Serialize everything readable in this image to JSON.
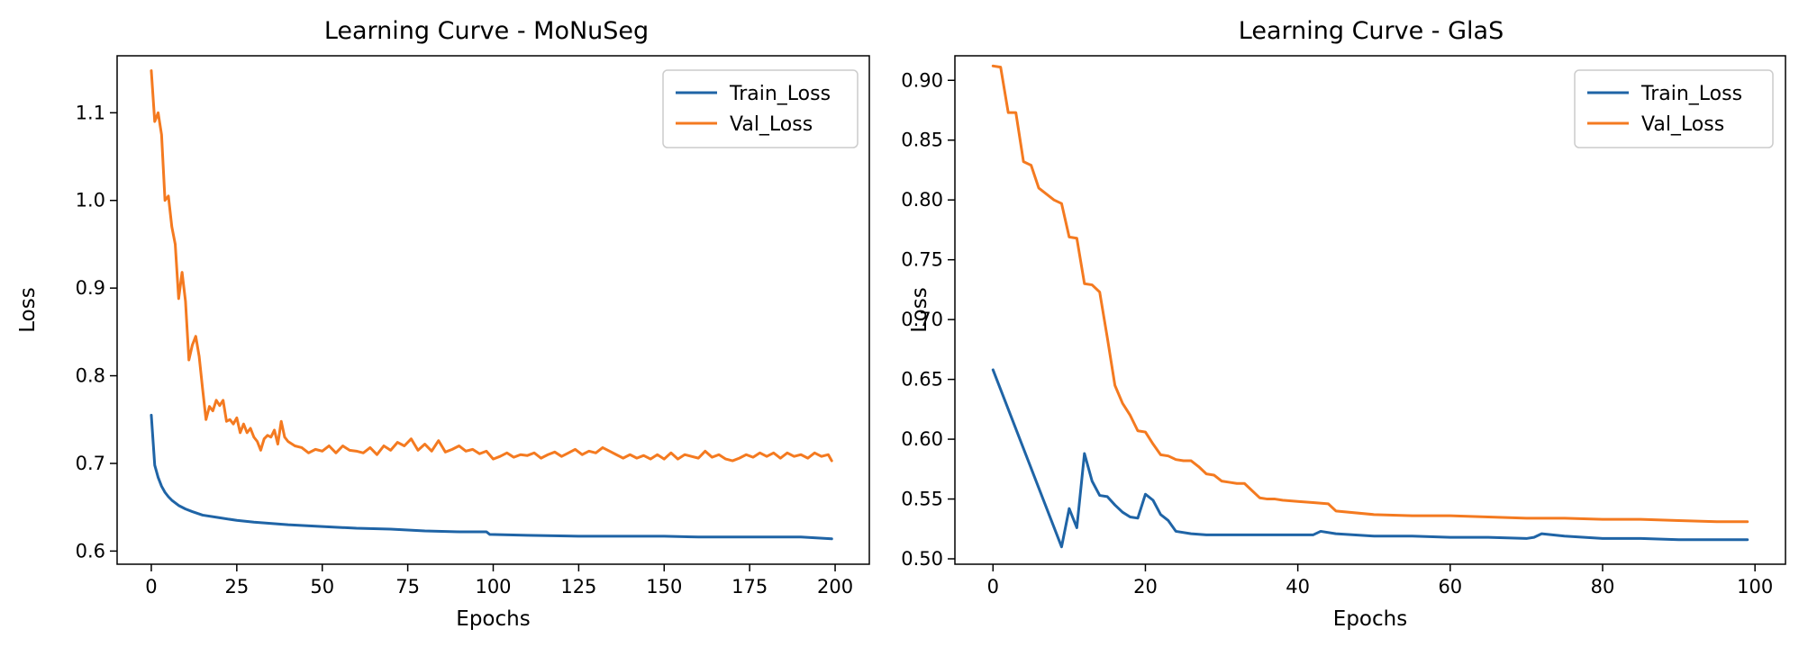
{
  "chart_data": [
    {
      "type": "line",
      "title": "Learning Curve - MoNuSeg",
      "xlabel": "Epochs",
      "ylabel": "Loss",
      "xlim": [
        -10,
        210
      ],
      "ylim": [
        0.585,
        1.165
      ],
      "xticks": [
        0,
        25,
        50,
        75,
        100,
        125,
        150,
        175,
        200
      ],
      "yticks": [
        0.6,
        0.7,
        0.8,
        0.9,
        1.0,
        1.1
      ],
      "ytick_decimals": 1,
      "grid": false,
      "legend_position": "top-right",
      "series": [
        {
          "name": "Train_Loss",
          "color": "#1f64a6",
          "x": [
            0,
            1,
            2,
            3,
            4,
            5,
            6,
            7,
            8,
            10,
            12,
            15,
            20,
            25,
            30,
            40,
            50,
            60,
            70,
            80,
            90,
            98,
            99,
            110,
            125,
            140,
            150,
            160,
            175,
            190,
            199
          ],
          "y": [
            0.755,
            0.698,
            0.684,
            0.674,
            0.667,
            0.662,
            0.658,
            0.655,
            0.652,
            0.648,
            0.645,
            0.641,
            0.638,
            0.635,
            0.633,
            0.63,
            0.628,
            0.626,
            0.625,
            0.623,
            0.622,
            0.622,
            0.619,
            0.618,
            0.617,
            0.617,
            0.617,
            0.616,
            0.616,
            0.616,
            0.614
          ]
        },
        {
          "name": "Val_Loss",
          "color": "#f47a20",
          "x": [
            0,
            1,
            2,
            3,
            4,
            5,
            6,
            7,
            8,
            9,
            10,
            11,
            12,
            13,
            14,
            15,
            16,
            17,
            18,
            19,
            20,
            21,
            22,
            23,
            24,
            25,
            26,
            27,
            28,
            29,
            30,
            31,
            32,
            33,
            34,
            35,
            36,
            37,
            38,
            39,
            40,
            42,
            44,
            46,
            48,
            50,
            52,
            54,
            56,
            58,
            60,
            62,
            64,
            66,
            68,
            70,
            72,
            74,
            76,
            78,
            80,
            82,
            84,
            86,
            88,
            90,
            92,
            94,
            96,
            98,
            100,
            102,
            104,
            106,
            108,
            110,
            112,
            114,
            116,
            118,
            120,
            122,
            124,
            126,
            128,
            130,
            132,
            134,
            136,
            138,
            140,
            142,
            144,
            146,
            148,
            150,
            152,
            154,
            156,
            158,
            160,
            162,
            164,
            166,
            168,
            170,
            172,
            174,
            176,
            178,
            180,
            182,
            184,
            186,
            188,
            190,
            192,
            194,
            196,
            198,
            199
          ],
          "y": [
            1.148,
            1.09,
            1.1,
            1.075,
            1.0,
            1.005,
            0.97,
            0.95,
            0.888,
            0.918,
            0.885,
            0.818,
            0.835,
            0.845,
            0.822,
            0.785,
            0.75,
            0.765,
            0.76,
            0.772,
            0.766,
            0.772,
            0.748,
            0.75,
            0.745,
            0.752,
            0.735,
            0.745,
            0.735,
            0.74,
            0.73,
            0.725,
            0.715,
            0.728,
            0.732,
            0.73,
            0.738,
            0.722,
            0.748,
            0.73,
            0.725,
            0.72,
            0.718,
            0.712,
            0.716,
            0.714,
            0.72,
            0.712,
            0.72,
            0.715,
            0.714,
            0.712,
            0.718,
            0.71,
            0.72,
            0.715,
            0.724,
            0.72,
            0.728,
            0.715,
            0.722,
            0.714,
            0.726,
            0.713,
            0.716,
            0.72,
            0.714,
            0.716,
            0.711,
            0.714,
            0.705,
            0.708,
            0.712,
            0.707,
            0.71,
            0.709,
            0.712,
            0.706,
            0.71,
            0.713,
            0.708,
            0.712,
            0.716,
            0.71,
            0.714,
            0.712,
            0.718,
            0.714,
            0.71,
            0.706,
            0.71,
            0.706,
            0.709,
            0.705,
            0.71,
            0.705,
            0.712,
            0.705,
            0.71,
            0.708,
            0.706,
            0.714,
            0.707,
            0.71,
            0.705,
            0.703,
            0.706,
            0.71,
            0.707,
            0.712,
            0.708,
            0.712,
            0.706,
            0.712,
            0.708,
            0.71,
            0.706,
            0.712,
            0.708,
            0.71,
            0.703
          ]
        }
      ]
    },
    {
      "type": "line",
      "title": "Learning Curve - GlaS",
      "xlabel": "Epochs",
      "ylabel": "Loss",
      "xlim": [
        -5,
        104
      ],
      "ylim": [
        0.4955,
        0.9205
      ],
      "xticks": [
        0,
        20,
        40,
        60,
        80,
        100
      ],
      "yticks": [
        0.5,
        0.55,
        0.6,
        0.65,
        0.7,
        0.75,
        0.8,
        0.85,
        0.9
      ],
      "ytick_decimals": 2,
      "grid": false,
      "legend_position": "top-right",
      "series": [
        {
          "name": "Train_Loss",
          "color": "#1f64a6",
          "x": [
            0,
            9,
            10,
            11,
            12,
            13,
            14,
            15,
            16,
            17,
            18,
            19,
            20,
            21,
            22,
            23,
            24,
            26,
            28,
            30,
            35,
            40,
            42,
            43,
            45,
            50,
            55,
            60,
            65,
            70,
            71,
            72,
            75,
            80,
            85,
            90,
            95,
            99
          ],
          "y": [
            0.658,
            0.51,
            0.542,
            0.526,
            0.588,
            0.565,
            0.553,
            0.552,
            0.545,
            0.539,
            0.535,
            0.534,
            0.554,
            0.549,
            0.537,
            0.532,
            0.523,
            0.521,
            0.52,
            0.52,
            0.52,
            0.52,
            0.52,
            0.523,
            0.521,
            0.519,
            0.519,
            0.518,
            0.518,
            0.517,
            0.518,
            0.521,
            0.519,
            0.517,
            0.517,
            0.516,
            0.516,
            0.516
          ]
        },
        {
          "name": "Val_Loss",
          "color": "#f47a20",
          "x": [
            0,
            1,
            2,
            3,
            4,
            5,
            6,
            7,
            8,
            9,
            10,
            11,
            12,
            13,
            14,
            15,
            16,
            17,
            18,
            19,
            20,
            21,
            22,
            23,
            24,
            25,
            26,
            27,
            28,
            29,
            30,
            31,
            32,
            33,
            34,
            35,
            36,
            37,
            38,
            40,
            42,
            44,
            45,
            50,
            55,
            60,
            65,
            70,
            75,
            80,
            85,
            90,
            95,
            99
          ],
          "y": [
            0.912,
            0.911,
            0.873,
            0.873,
            0.832,
            0.829,
            0.81,
            0.805,
            0.8,
            0.797,
            0.769,
            0.768,
            0.73,
            0.729,
            0.723,
            0.685,
            0.645,
            0.63,
            0.62,
            0.607,
            0.606,
            0.596,
            0.587,
            0.586,
            0.583,
            0.582,
            0.582,
            0.577,
            0.571,
            0.57,
            0.565,
            0.564,
            0.563,
            0.563,
            0.557,
            0.551,
            0.55,
            0.55,
            0.549,
            0.548,
            0.547,
            0.546,
            0.54,
            0.537,
            0.536,
            0.536,
            0.535,
            0.534,
            0.534,
            0.533,
            0.533,
            0.532,
            0.531,
            0.531
          ]
        }
      ]
    }
  ]
}
